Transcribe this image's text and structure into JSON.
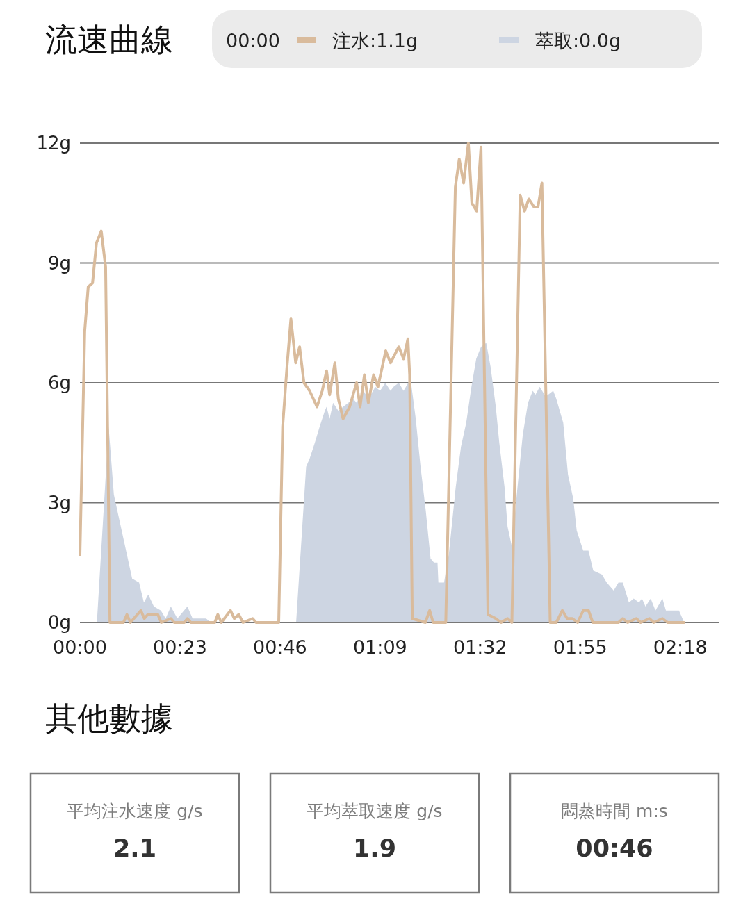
{
  "chart_data": [
    {
      "type": "line",
      "title": "流速曲線",
      "legend_title": "00:00",
      "legend": "top",
      "grid": "y",
      "xlim": [
        0,
        147
      ],
      "xticks": [
        {
          "value": 0,
          "label": "00:00"
        },
        {
          "value": 23,
          "label": "00:23"
        },
        {
          "value": 46,
          "label": "00:46"
        },
        {
          "value": 69,
          "label": "01:09"
        },
        {
          "value": 92,
          "label": "01:32"
        },
        {
          "value": 115,
          "label": "01:55"
        },
        {
          "value": 138,
          "label": "02:18"
        }
      ],
      "ylim": [
        0,
        12
      ],
      "yticks": [
        {
          "value": 0,
          "label": "0g"
        },
        {
          "value": 3,
          "label": "3g"
        },
        {
          "value": 6,
          "label": "6g"
        },
        {
          "value": 9,
          "label": "9g"
        },
        {
          "value": 12,
          "label": "12g"
        }
      ],
      "series": [
        {
          "name": "注水:1.1g",
          "type": "line",
          "color": "#d9bb9c",
          "x": [
            0,
            1.1,
            1.9,
            2.9,
            3.8,
            4.9,
            5.9,
            6.9,
            10,
            10.8,
            11.6,
            14,
            14.8,
            15.6,
            17.9,
            18.7,
            20.9,
            21.7,
            24,
            24.7,
            25.5,
            31,
            31.7,
            32.5,
            34.6,
            35.5,
            36.5,
            37.5,
            39.7,
            40.5,
            45.7,
            46.6,
            47.6,
            48.5,
            49.6,
            50.5,
            51.5,
            52.8,
            54.5,
            55.7,
            56.7,
            57.4,
            58.6,
            59.4,
            60.5,
            62,
            63.6,
            64.4,
            65.4,
            66.3,
            67.5,
            68.5,
            70.3,
            71.4,
            73.3,
            74.4,
            75.4,
            75.8,
            76.4,
            79.4,
            80.4,
            81.2,
            84.1,
            86.3,
            87.2,
            88.2,
            89.3,
            90.1,
            91.2,
            92.2,
            93.8,
            95.6,
            96.8,
            98.3,
            99.3,
            101.2,
            102.2,
            103.2,
            104.4,
            105.3,
            106.2,
            108.1,
            109.5,
            110.9,
            112,
            113.2,
            114.4,
            115.7,
            116.9,
            117.9,
            123.8,
            124.8,
            125.9,
            127.9,
            128.9,
            130.9,
            131.9,
            133.9,
            135.1,
            138.9
          ],
          "values": [
            1.7,
            7.3,
            8.4,
            8.5,
            9.5,
            9.8,
            8.9,
            0,
            0,
            0.2,
            0,
            0.3,
            0.1,
            0.2,
            0.2,
            0,
            0.1,
            0,
            0,
            0.1,
            0,
            0,
            0.2,
            0,
            0.3,
            0.1,
            0.2,
            0,
            0.1,
            0,
            0,
            4.9,
            6.4,
            7.6,
            6.5,
            6.9,
            6.0,
            5.8,
            5.4,
            5.8,
            6.3,
            5.7,
            6.5,
            5.6,
            5.1,
            5.4,
            6.0,
            5.4,
            6.2,
            5.5,
            6.2,
            5.9,
            6.8,
            6.5,
            6.9,
            6.6,
            7.1,
            6.2,
            0.1,
            0,
            0.3,
            0,
            0,
            10.9,
            11.6,
            11.0,
            12.0,
            10.5,
            10.3,
            11.9,
            0.2,
            0.1,
            0,
            0.1,
            0,
            10.7,
            10.3,
            10.6,
            10.4,
            10.4,
            11.0,
            0,
            0,
            0.3,
            0.1,
            0.1,
            0,
            0.3,
            0.3,
            0,
            0,
            0.1,
            0,
            0.1,
            0,
            0.1,
            0,
            0.1,
            0,
            0
          ]
        },
        {
          "name": "萃取:0.0g",
          "type": "area",
          "color": "#cdd5e2",
          "x": [
            3.9,
            6.6,
            7.8,
            10.0,
            10.8,
            12.0,
            13.6,
            14.7,
            15.7,
            17.0,
            18.6,
            19.7,
            20.9,
            22.4,
            24.7,
            25.9,
            27.4,
            29.0,
            30.1,
            49.7,
            52.0,
            52.8,
            54.0,
            55.1,
            56.3,
            56.7,
            57.4,
            58.2,
            59.4,
            60.5,
            61.7,
            62.8,
            63.6,
            65.2,
            66.3,
            67.9,
            69.0,
            70.2,
            71.4,
            72.1,
            73.3,
            74.4,
            76.0,
            77.2,
            78.3,
            79.5,
            80.6,
            81.4,
            82.2,
            82.4,
            83.7,
            84.8,
            86.4,
            87.6,
            88.8,
            90.0,
            91.1,
            92.2,
            93.4,
            94.4,
            95.6,
            96.4,
            97.6,
            98.3,
            99.3,
            100.6,
            101.8,
            103.0,
            104.1,
            104.7,
            105.7,
            106.8,
            107.6,
            108.8,
            109.5,
            111.1,
            112.2,
            113.4,
            114.2,
            115.7,
            116.9,
            118.0,
            120.0,
            121.1,
            122.7,
            123.8,
            124.8,
            126.2,
            127.3,
            128.5,
            129.2,
            130.0,
            131.2,
            132.3,
            133.9,
            134.7,
            137.7,
            138.9
          ],
          "values": [
            0,
            4.9,
            3.2,
            2.1,
            1.7,
            1.1,
            1.0,
            0.5,
            0.7,
            0.4,
            0.3,
            0.1,
            0.4,
            0.1,
            0.4,
            0.1,
            0.1,
            0.1,
            0,
            0,
            3.9,
            4.1,
            4.5,
            4.9,
            5.3,
            5.4,
            5.1,
            5.5,
            5.3,
            5.4,
            5.5,
            5.6,
            5.5,
            5.8,
            5.6,
            5.9,
            5.8,
            6.0,
            5.8,
            5.9,
            6.0,
            5.8,
            6.1,
            5.1,
            3.9,
            2.8,
            1.6,
            1.5,
            1.5,
            1.0,
            1.0,
            1.7,
            3.4,
            4.4,
            5.0,
            5.9,
            6.6,
            6.9,
            7.0,
            6.4,
            5.4,
            4.5,
            3.4,
            2.4,
            1.9,
            3.4,
            4.7,
            5.5,
            5.8,
            5.7,
            5.9,
            5.7,
            5.7,
            5.8,
            5.6,
            5.0,
            3.7,
            3.1,
            2.3,
            1.8,
            1.8,
            1.3,
            1.2,
            1.0,
            0.8,
            1.0,
            1.0,
            0.5,
            0.6,
            0.5,
            0.6,
            0.4,
            0.6,
            0.3,
            0.6,
            0.3,
            0.3,
            0
          ]
        }
      ]
    },
    {
      "type": "other",
      "title": "其他數據",
      "annotations": [
        "平均注水速度 g/s",
        "2.1",
        "平均萃取速度 g/s",
        "1.9",
        "悶蒸時間 m:s",
        "00:46"
      ]
    }
  ]
}
